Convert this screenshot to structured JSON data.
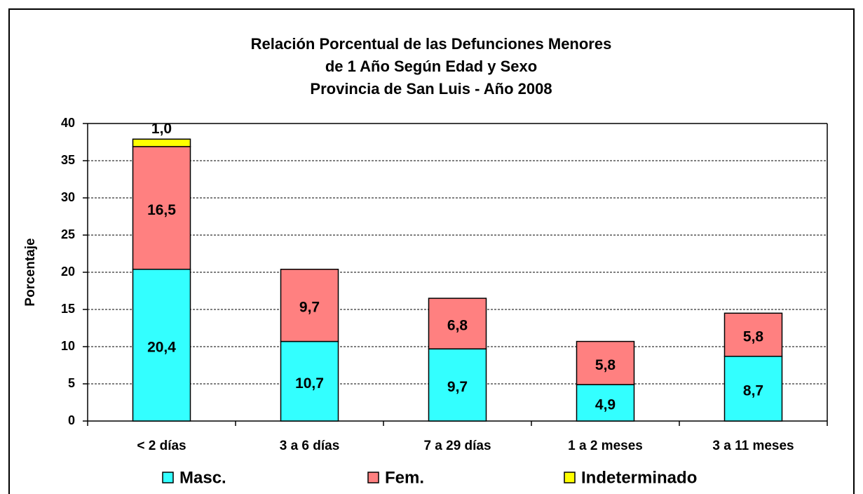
{
  "chart_data": {
    "type": "stacked_bar",
    "title": [
      "Relación Porcentual de las Defunciones Menores",
      "de 1 Año Según Edad y Sexo",
      "Provincia de San Luis - Año 2008"
    ],
    "y_label": "Porcentaje",
    "categories": [
      "< 2 días",
      "3 a 6 días",
      "7 a 29 días",
      "1 a 2 meses",
      "3 a 11 meses"
    ],
    "series": [
      {
        "name": "Masc.",
        "color": "#33ffff",
        "values": [
          20.4,
          10.7,
          9.7,
          4.9,
          8.7
        ],
        "value_labels": [
          "20,4",
          "10,7",
          "9,7",
          "4,9",
          "8,7"
        ]
      },
      {
        "name": "Fem.",
        "color": "#ff8080",
        "values": [
          16.5,
          9.7,
          6.8,
          5.8,
          5.8
        ],
        "value_labels": [
          "16,5",
          "9,7",
          "6,8",
          "5,8",
          "5,8"
        ]
      },
      {
        "name": "Indeterminado",
        "color": "#ffff00",
        "values": [
          1.0,
          null,
          null,
          null,
          null
        ],
        "value_labels": [
          "1,0",
          null,
          null,
          null,
          null
        ]
      }
    ],
    "ylim": [
      0,
      40
    ],
    "yticks": [
      0,
      5,
      10,
      15,
      20,
      25,
      30,
      35,
      40
    ],
    "grid": true,
    "legend": "bottom"
  }
}
